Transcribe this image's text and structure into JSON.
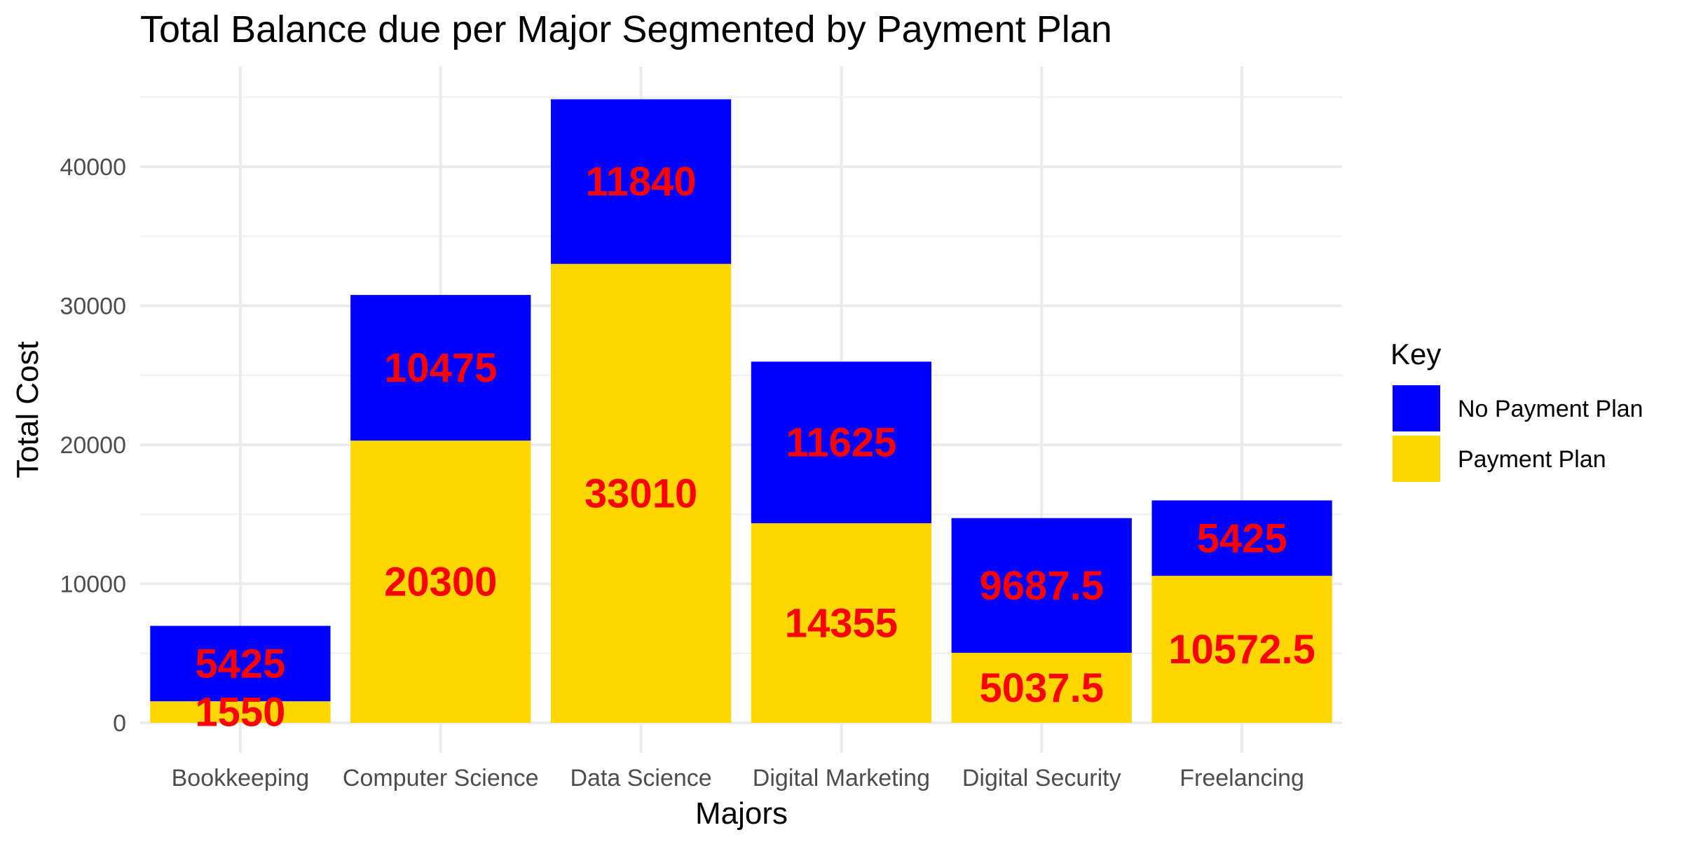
{
  "chart_data": {
    "type": "bar",
    "stacked": true,
    "title": "Total Balance due per Major Segmented by Payment Plan",
    "xlabel": "Majors",
    "ylabel": "Total Cost",
    "categories": [
      "Bookkeeping",
      "Computer Science",
      "Data Science",
      "Digital Marketing",
      "Digital Security",
      "Freelancing"
    ],
    "series": [
      {
        "name": "Payment Plan",
        "color": "#FFD700",
        "values": [
          1550,
          20300,
          33010,
          14355,
          5037.5,
          10572.5
        ],
        "labels": [
          "1550",
          "20300",
          "33010",
          "14355",
          "5037.5",
          "10572.5"
        ]
      },
      {
        "name": "No Payment Plan",
        "color": "#0000FF",
        "values": [
          5425,
          10475,
          11840,
          11625,
          9687.5,
          5425
        ],
        "labels": [
          "5425",
          "10475",
          "11840",
          "11625",
          "9687.5",
          "5425"
        ]
      }
    ],
    "ylim": [
      0,
      46500
    ],
    "yticks": [
      0,
      10000,
      20000,
      30000,
      40000
    ],
    "ytick_labels": [
      "0",
      "10000",
      "20000",
      "30000",
      "40000"
    ],
    "data_label_color": "#FF0000",
    "grid": true,
    "legend": {
      "title": "Key",
      "position": "right",
      "order": [
        "No Payment Plan",
        "Payment Plan"
      ]
    }
  }
}
